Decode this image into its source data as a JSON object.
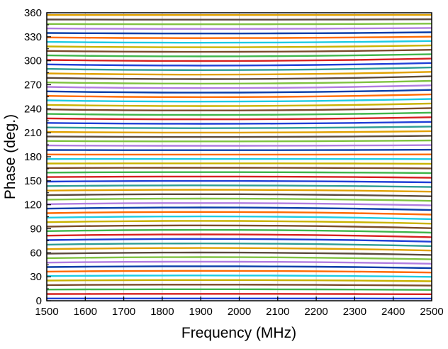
{
  "chart_data": {
    "type": "line",
    "title": "",
    "xlabel": "Frequency (MHz)",
    "ylabel": "Phase (deg.)",
    "xlim": [
      1500,
      2500
    ],
    "ylim": [
      0,
      360
    ],
    "xticks": [
      1500,
      1600,
      1700,
      1800,
      1900,
      2000,
      2100,
      2200,
      2300,
      2400,
      2500
    ],
    "yticks": [
      0,
      30,
      60,
      90,
      120,
      150,
      180,
      210,
      240,
      270,
      300,
      330,
      360
    ],
    "grid": {
      "vertical": true,
      "horizontal": false
    },
    "x": [
      1500,
      1600,
      1700,
      1800,
      1900,
      2000,
      2100,
      2200,
      2300,
      2400,
      2500
    ],
    "series_count": 64,
    "phase_step_deg": 5.625,
    "start_phase_deg": 2.8125,
    "bow_amplitude_deg": 3.5,
    "colors": [
      "#1f3fd6",
      "#d62020",
      "#3fb54a",
      "#7a4b2a",
      "#c9b200",
      "#1ecbe1",
      "#ff6a00",
      "#0a3ea8",
      "#b07ce0",
      "#7fc241",
      "#5b4a3c",
      "#e0a000",
      "#2e9c94"
    ]
  }
}
